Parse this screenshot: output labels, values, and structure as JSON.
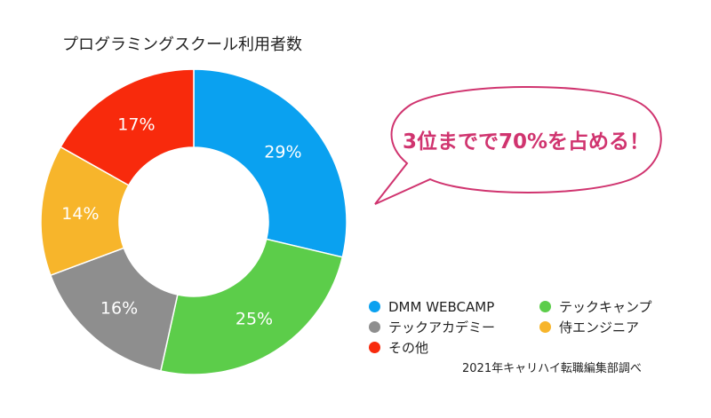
{
  "chart_data": {
    "type": "pie",
    "variant": "donut",
    "title": "プログラミングスクール利用者数",
    "categories": [
      "DMM WEBCAMP",
      "テックキャンプ",
      "テックアカデミー",
      "侍エンジニア",
      "その他"
    ],
    "values": [
      29,
      25,
      16,
      14,
      17
    ],
    "labels": [
      "29%",
      "25%",
      "16%",
      "14%",
      "17%"
    ],
    "colors": [
      "#0aa1f0",
      "#5ccd4a",
      "#8e8e8e",
      "#f7b52b",
      "#f82a0c"
    ],
    "legend_position": "bottom-right",
    "annotation": "3位までで70%を占める！",
    "source": "2021年キャリハイ転職編集部調べ"
  },
  "accent_color": "#d0346f"
}
